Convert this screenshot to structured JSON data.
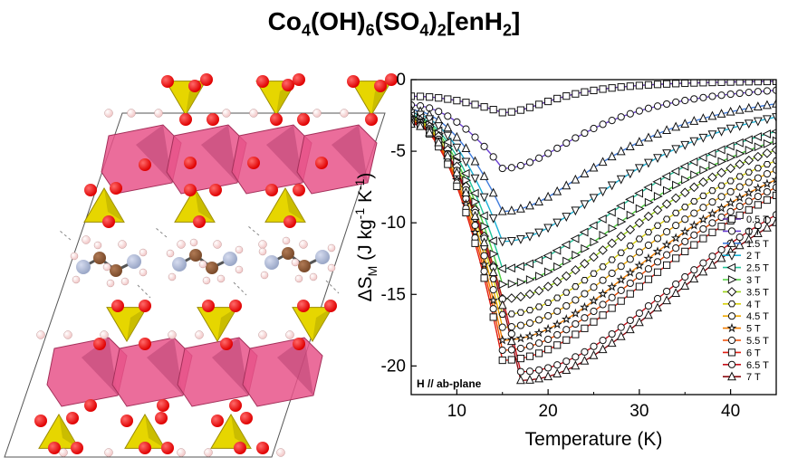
{
  "figure_title": {
    "parts": [
      {
        "t": "Co",
        "sub": "4"
      },
      {
        "t": "(OH)",
        "sub": "6"
      },
      {
        "t": "(SO",
        "sub": "4"
      },
      {
        "t": ")",
        "sub": "2"
      },
      {
        "t": "[enH",
        "sub": "2"
      },
      {
        "t": "]",
        "sub": ""
      }
    ]
  },
  "structure": {
    "polyhedra_color": "#e8538a",
    "tetrahedra_color": "#e6d600",
    "oxygen_color": "#e00000",
    "hydrogen_color": "#f2c7c7",
    "carbon_color": "#7a4a2a",
    "nitrogen_color": "#9aa7c7"
  },
  "chart_data": {
    "type": "line",
    "ylabel": "ΔS_M (J kg^-1 K^-1)",
    "ylabel_main": "ΔS",
    "ylabel_sub": "M",
    "ylabel_rest": " (J kg",
    "ylabel_exp1": "-1",
    "ylabel_mid": " K",
    "ylabel_exp2": "-1",
    "ylabel_end": ")",
    "xlabel": "Temperature (K)",
    "xlim": [
      5,
      45
    ],
    "ylim": [
      -22,
      0
    ],
    "xticks": [
      10,
      20,
      30,
      40
    ],
    "yticks": [
      0,
      -5,
      -10,
      -15,
      -20
    ],
    "grid": false,
    "legend_position": "right",
    "annotation": "H // ab-plane",
    "series": [
      {
        "name": "0.5 T",
        "marker": "square",
        "color": "#5e2ea8",
        "min_T": 15,
        "min_val": -2.3
      },
      {
        "name": "1 T",
        "marker": "circle",
        "color": "#6a3fd1",
        "min_T": 15,
        "min_val": -6.2
      },
      {
        "name": "1.5 T",
        "marker": "triangle-up",
        "color": "#3f7bdb",
        "min_T": 15,
        "min_val": -9.2
      },
      {
        "name": "2 T",
        "marker": "triangle-down",
        "color": "#19b0d6",
        "min_T": 15,
        "min_val": -11.3
      },
      {
        "name": "2.5 T",
        "marker": "triangle-left",
        "color": "#20c49a",
        "min_T": 15,
        "min_val": -13.2
      },
      {
        "name": "3 T",
        "marker": "triangle-right",
        "color": "#4ccf3c",
        "min_T": 15,
        "min_val": -14.3
      },
      {
        "name": "3.5 T",
        "marker": "diamond",
        "color": "#9cd318",
        "min_T": 15,
        "min_val": -15.3
      },
      {
        "name": "4 T",
        "marker": "hexagon",
        "color": "#d8d00c",
        "min_T": 15,
        "min_val": -16.4
      },
      {
        "name": "4.5 T",
        "marker": "circle",
        "color": "#f0a800",
        "min_T": 15,
        "min_val": -17.3
      },
      {
        "name": "5 T",
        "marker": "star",
        "color": "#f07d00",
        "min_T": 15,
        "min_val": -18.2
      },
      {
        "name": "5.5 T",
        "marker": "circle",
        "color": "#ee4a00",
        "min_T": 15,
        "min_val": -18.9
      },
      {
        "name": "6 T",
        "marker": "square",
        "color": "#e01e12",
        "min_T": 15,
        "min_val": -19.6
      },
      {
        "name": "6.5 T",
        "marker": "circle",
        "color": "#c4101a",
        "min_T": 17,
        "min_val": -20.4
      },
      {
        "name": "7 T",
        "marker": "triangle-up",
        "color": "#8a0a10",
        "min_T": 17,
        "min_val": -21.0
      }
    ]
  }
}
